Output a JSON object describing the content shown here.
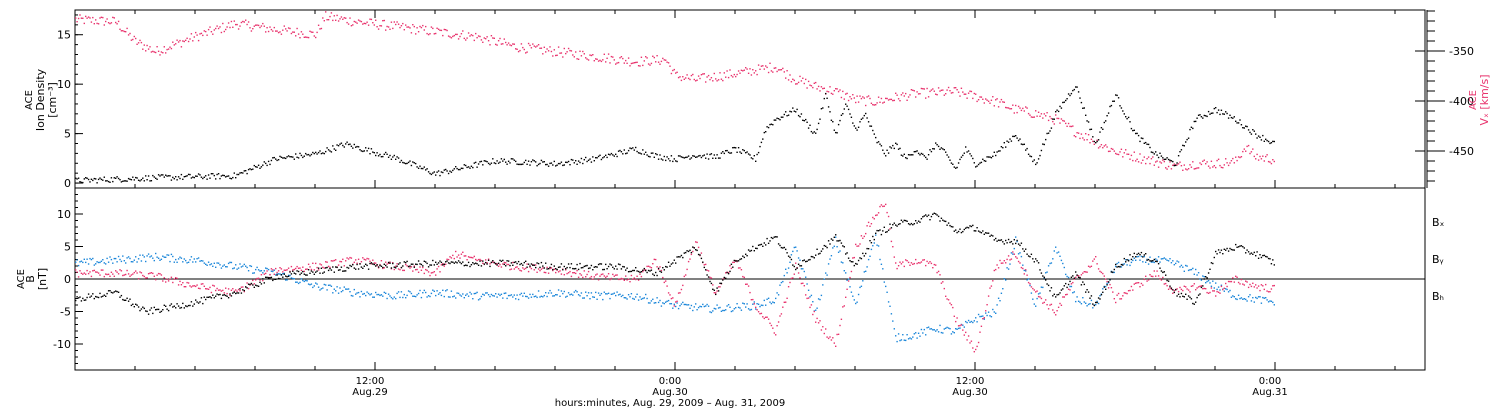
{
  "colors": {
    "black": "#000000",
    "pink": "#e8336d",
    "blue": "#1a86d9"
  },
  "chart_data": [
    {
      "type": "scatter",
      "panel": "top",
      "ylabel_left": [
        "ACE",
        "Ion Density",
        "[cm⁻³]"
      ],
      "ylabel_right": [
        "ACE",
        "Vₓ [km/s]"
      ],
      "left_ticks": [
        "0",
        "5",
        "10",
        "15"
      ],
      "right_ticks": [
        "-350",
        "-400",
        "-450"
      ],
      "ylim_left": [
        -0.5,
        17.5
      ],
      "ylim_right": [
        -487,
        -309
      ],
      "series": [
        {
          "axis": "left",
          "color": "black",
          "x": [
            0,
            4,
            8,
            10,
            12,
            13.5,
            16,
            18,
            20,
            21,
            22.5,
            24,
            26,
            28,
            29,
            30,
            31,
            32,
            33,
            34,
            34.5,
            35,
            36,
            37,
            37.5,
            38,
            38.5,
            39,
            39.5,
            40,
            40.5,
            41,
            41.5,
            42,
            42.5,
            43,
            43.5,
            44,
            44.5,
            45,
            46,
            47,
            48,
            49,
            50,
            51,
            52,
            53,
            54,
            55,
            56,
            57,
            58,
            59,
            60
          ],
          "y": [
            0.3,
            0.6,
            0.8,
            2.5,
            3.0,
            4.0,
            2.6,
            1.0,
            1.9,
            2.3,
            2.2,
            2.0,
            2.5,
            3.5,
            2.8,
            2.5,
            2.9,
            2.7,
            3.5,
            2.5,
            5.5,
            6.5,
            7.5,
            5.0,
            9.0,
            5.0,
            8.0,
            5.5,
            7.0,
            4.5,
            3.0,
            4.0,
            2.5,
            3.5,
            2.5,
            4.0,
            3.0,
            1.5,
            3.5,
            2.0,
            3.0,
            5.0,
            2.0,
            7.0,
            10.0,
            4.0,
            9.0,
            5.0,
            3.0,
            2.0,
            6.5,
            7.5,
            6.5,
            5.0,
            4.0
          ]
        },
        {
          "axis": "right",
          "color": "pink",
          "x": [
            0,
            2,
            3,
            4,
            6,
            8,
            10,
            12,
            12.5,
            14,
            16,
            18,
            20,
            22,
            24,
            28,
            29.5,
            30,
            31,
            33,
            35,
            36,
            37,
            38,
            39,
            40,
            41,
            42,
            44,
            45,
            46,
            47,
            48,
            49,
            50,
            51,
            52,
            54,
            55,
            56,
            57,
            58,
            58.5,
            59,
            60
          ],
          "y": [
            -318,
            -320,
            -340,
            -350,
            -335,
            -322,
            -328,
            -333,
            -315,
            -320,
            -325,
            -330,
            -335,
            -345,
            -350,
            -360,
            -358,
            -374,
            -378,
            -372,
            -365,
            -378,
            -385,
            -390,
            -398,
            -400,
            -396,
            -392,
            -390,
            -395,
            -400,
            -408,
            -412,
            -418,
            -430,
            -440,
            -450,
            -460,
            -465,
            -462,
            -462,
            -460,
            -445,
            -455,
            -458
          ]
        }
      ]
    },
    {
      "type": "scatter",
      "panel": "bottom",
      "ylabel_left": [
        "ACE",
        "B",
        "[nT]"
      ],
      "left_ticks": [
        "-10",
        "-5",
        "0",
        "5",
        "10"
      ],
      "ylim": [
        -14,
        14
      ],
      "legend": [
        "Bₓ",
        "Bᵧ",
        "Bₕ"
      ],
      "legend_placement": "right",
      "series": [
        {
          "name": "Bₓ",
          "color": "black",
          "x": [
            0,
            2,
            3.5,
            6,
            8,
            10,
            14,
            18,
            22,
            24,
            27,
            29,
            30,
            31,
            32,
            33,
            34,
            35,
            36,
            37,
            38,
            39,
            40,
            41,
            42,
            43,
            44,
            45,
            46,
            47,
            48,
            49,
            50,
            51,
            52,
            53,
            54,
            55,
            56,
            57,
            58,
            59,
            60
          ],
          "y": [
            -3.0,
            -2.0,
            -5.0,
            -3.5,
            -2.0,
            0.5,
            2.0,
            2.5,
            2.5,
            2.0,
            2.0,
            1.0,
            3.0,
            5.0,
            -2.0,
            3.0,
            5.0,
            6.5,
            2.0,
            4.0,
            6.5,
            2.0,
            7.0,
            8.5,
            9.0,
            10.0,
            7.5,
            8.0,
            6.0,
            6.0,
            3.0,
            -3.0,
            1.0,
            -4.0,
            2.0,
            4.0,
            3.0,
            -2.0,
            -3.5,
            4.0,
            5.0,
            4.0,
            2.5
          ]
        },
        {
          "name": "Bᵧ",
          "color": "blue",
          "x": [
            0,
            2,
            4,
            6,
            8,
            10,
            12,
            14,
            16,
            18,
            20,
            22,
            24,
            26,
            28,
            30,
            32,
            34,
            35,
            36,
            37,
            38,
            39,
            40,
            41,
            42,
            43,
            44,
            45,
            46,
            47,
            48,
            49,
            50,
            51,
            52,
            53,
            54,
            55,
            56,
            57,
            58,
            59,
            60
          ],
          "y": [
            2.5,
            3.0,
            3.5,
            3.0,
            2.0,
            1.0,
            -1.0,
            -2.0,
            -2.5,
            -2.0,
            -2.5,
            -2.5,
            -2.0,
            -2.5,
            -2.5,
            -4.0,
            -4.5,
            -4.0,
            -3.0,
            5.0,
            -5.0,
            6.0,
            -4.0,
            7.0,
            -9.0,
            -8.5,
            -7.5,
            -8.0,
            -6.0,
            -5.0,
            6.0,
            -4.0,
            5.0,
            -3.0,
            -4.0,
            2.0,
            3.0,
            3.0,
            2.5,
            1.0,
            -1.0,
            -2.5,
            -3.0,
            -3.5
          ]
        },
        {
          "name": "Bₕ",
          "color": "pink",
          "x": [
            0,
            2,
            4,
            6,
            8,
            10,
            12,
            14,
            16,
            18,
            19,
            20,
            22,
            24,
            26,
            28,
            29,
            30,
            31,
            32,
            33,
            34,
            35,
            36,
            37,
            38,
            39,
            40,
            40.5,
            41,
            42,
            43,
            44,
            45,
            46,
            47,
            48,
            49,
            50,
            51,
            52,
            53,
            54,
            55,
            56,
            57,
            58,
            59,
            60
          ],
          "y": [
            1.0,
            1.0,
            0.5,
            -1.0,
            -2.0,
            1.5,
            2.0,
            3.0,
            2.0,
            1.0,
            4.0,
            3.0,
            2.0,
            1.5,
            0.5,
            0.0,
            3.0,
            -4.0,
            6.0,
            -2.0,
            3.0,
            -4.0,
            -8.0,
            2.0,
            -6.0,
            -10.0,
            5.0,
            10.0,
            12.0,
            2.0,
            3.0,
            2.0,
            -6.0,
            -11.0,
            2.0,
            4.0,
            -2.0,
            -5.0,
            0.0,
            3.0,
            -3.0,
            -1.0,
            1.0,
            -2.0,
            -1.0,
            -2.0,
            0.0,
            -1.0,
            -1.5
          ]
        }
      ]
    }
  ],
  "xaxis": {
    "tick_labels": [
      {
        "hours": 15,
        "time": "12:00",
        "date": "Aug.29"
      },
      {
        "hours": 30,
        "time": "0:00",
        "date": "Aug.30"
      },
      {
        "hours": 45,
        "time": "12:00",
        "date": "Aug.30"
      },
      {
        "hours": 60,
        "time": "0:00",
        "date": "Aug.31"
      }
    ],
    "xlim": [
      0,
      67.5
    ],
    "xlabel": "hours:minutes, Aug. 29, 2009 – Aug. 31, 2009"
  }
}
